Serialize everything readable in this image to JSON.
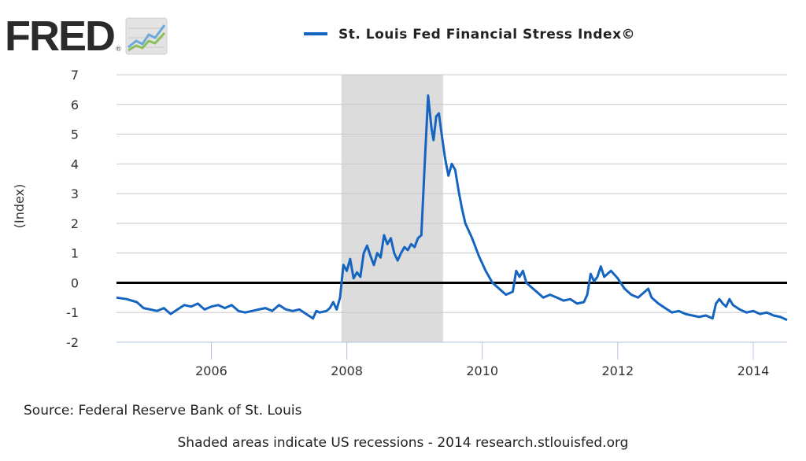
{
  "logo": {
    "text": "FRED",
    "mark": "®"
  },
  "chart_data": {
    "type": "line",
    "title": "St. Louis Fed Financial Stress Index©",
    "ylabel": "(Index)",
    "xlabel": "",
    "ylim": [
      -2,
      7
    ],
    "xlim": [
      2004.6,
      2014.5
    ],
    "yticks": [
      "7",
      "6",
      "5",
      "4",
      "3",
      "2",
      "1",
      "0",
      "-1",
      "-2"
    ],
    "xticks": [
      "2006",
      "2008",
      "2010",
      "2012",
      "2014"
    ],
    "recession": {
      "start": 2007.92,
      "end": 2009.42
    },
    "zero_line": 0,
    "series": [
      {
        "name": "St. Louis Fed Financial Stress Index©",
        "color": "#1565c0",
        "points": [
          [
            2004.6,
            -0.5
          ],
          [
            2004.75,
            -0.55
          ],
          [
            2004.9,
            -0.65
          ],
          [
            2005.0,
            -0.85
          ],
          [
            2005.1,
            -0.9
          ],
          [
            2005.2,
            -0.95
          ],
          [
            2005.3,
            -0.85
          ],
          [
            2005.4,
            -1.05
          ],
          [
            2005.5,
            -0.9
          ],
          [
            2005.6,
            -0.75
          ],
          [
            2005.7,
            -0.8
          ],
          [
            2005.8,
            -0.7
          ],
          [
            2005.9,
            -0.9
          ],
          [
            2006.0,
            -0.8
          ],
          [
            2006.1,
            -0.75
          ],
          [
            2006.2,
            -0.85
          ],
          [
            2006.3,
            -0.75
          ],
          [
            2006.4,
            -0.95
          ],
          [
            2006.5,
            -1.0
          ],
          [
            2006.6,
            -0.95
          ],
          [
            2006.7,
            -0.9
          ],
          [
            2006.8,
            -0.85
          ],
          [
            2006.9,
            -0.95
          ],
          [
            2007.0,
            -0.75
          ],
          [
            2007.1,
            -0.9
          ],
          [
            2007.2,
            -0.95
          ],
          [
            2007.3,
            -0.9
          ],
          [
            2007.4,
            -1.05
          ],
          [
            2007.5,
            -1.2
          ],
          [
            2007.55,
            -0.95
          ],
          [
            2007.6,
            -1.0
          ],
          [
            2007.7,
            -0.95
          ],
          [
            2007.75,
            -0.85
          ],
          [
            2007.8,
            -0.65
          ],
          [
            2007.85,
            -0.9
          ],
          [
            2007.9,
            -0.5
          ],
          [
            2007.95,
            0.6
          ],
          [
            2008.0,
            0.4
          ],
          [
            2008.05,
            0.8
          ],
          [
            2008.1,
            0.15
          ],
          [
            2008.15,
            0.35
          ],
          [
            2008.2,
            0.2
          ],
          [
            2008.25,
            1.0
          ],
          [
            2008.3,
            1.25
          ],
          [
            2008.35,
            0.9
          ],
          [
            2008.4,
            0.6
          ],
          [
            2008.45,
            1.0
          ],
          [
            2008.5,
            0.85
          ],
          [
            2008.55,
            1.6
          ],
          [
            2008.6,
            1.3
          ],
          [
            2008.65,
            1.5
          ],
          [
            2008.7,
            1.0
          ],
          [
            2008.75,
            0.75
          ],
          [
            2008.8,
            1.0
          ],
          [
            2008.85,
            1.2
          ],
          [
            2008.9,
            1.1
          ],
          [
            2008.95,
            1.3
          ],
          [
            2009.0,
            1.2
          ],
          [
            2009.05,
            1.5
          ],
          [
            2009.1,
            1.6
          ],
          [
            2009.15,
            4.0
          ],
          [
            2009.2,
            6.3
          ],
          [
            2009.25,
            5.2
          ],
          [
            2009.28,
            4.8
          ],
          [
            2009.32,
            5.6
          ],
          [
            2009.36,
            5.7
          ],
          [
            2009.4,
            5.0
          ],
          [
            2009.45,
            4.2
          ],
          [
            2009.5,
            3.6
          ],
          [
            2009.55,
            4.0
          ],
          [
            2009.6,
            3.8
          ],
          [
            2009.65,
            3.1
          ],
          [
            2009.7,
            2.5
          ],
          [
            2009.75,
            2.0
          ],
          [
            2009.85,
            1.5
          ],
          [
            2009.95,
            0.9
          ],
          [
            2010.05,
            0.4
          ],
          [
            2010.15,
            0.0
          ],
          [
            2010.25,
            -0.2
          ],
          [
            2010.35,
            -0.4
          ],
          [
            2010.45,
            -0.3
          ],
          [
            2010.5,
            0.4
          ],
          [
            2010.55,
            0.2
          ],
          [
            2010.6,
            0.4
          ],
          [
            2010.65,
            0.0
          ],
          [
            2010.7,
            -0.1
          ],
          [
            2010.8,
            -0.3
          ],
          [
            2010.9,
            -0.5
          ],
          [
            2011.0,
            -0.4
          ],
          [
            2011.1,
            -0.5
          ],
          [
            2011.2,
            -0.6
          ],
          [
            2011.3,
            -0.55
          ],
          [
            2011.4,
            -0.7
          ],
          [
            2011.5,
            -0.65
          ],
          [
            2011.55,
            -0.4
          ],
          [
            2011.6,
            0.3
          ],
          [
            2011.65,
            0.05
          ],
          [
            2011.7,
            0.2
          ],
          [
            2011.75,
            0.55
          ],
          [
            2011.8,
            0.2
          ],
          [
            2011.9,
            0.4
          ],
          [
            2012.0,
            0.15
          ],
          [
            2012.1,
            -0.2
          ],
          [
            2012.2,
            -0.4
          ],
          [
            2012.3,
            -0.5
          ],
          [
            2012.4,
            -0.3
          ],
          [
            2012.45,
            -0.2
          ],
          [
            2012.5,
            -0.5
          ],
          [
            2012.6,
            -0.7
          ],
          [
            2012.7,
            -0.85
          ],
          [
            2012.8,
            -1.0
          ],
          [
            2012.9,
            -0.95
          ],
          [
            2013.0,
            -1.05
          ],
          [
            2013.1,
            -1.1
          ],
          [
            2013.2,
            -1.15
          ],
          [
            2013.3,
            -1.1
          ],
          [
            2013.4,
            -1.2
          ],
          [
            2013.45,
            -0.7
          ],
          [
            2013.5,
            -0.55
          ],
          [
            2013.55,
            -0.7
          ],
          [
            2013.6,
            -0.8
          ],
          [
            2013.65,
            -0.55
          ],
          [
            2013.7,
            -0.75
          ],
          [
            2013.8,
            -0.9
          ],
          [
            2013.9,
            -1.0
          ],
          [
            2014.0,
            -0.95
          ],
          [
            2014.1,
            -1.05
          ],
          [
            2014.2,
            -1.0
          ],
          [
            2014.3,
            -1.1
          ],
          [
            2014.4,
            -1.15
          ],
          [
            2014.5,
            -1.25
          ]
        ]
      }
    ]
  },
  "source": "Source: Federal Reserve Bank of St. Louis",
  "footnote": "Shaded areas indicate US recessions - 2014 research.stlouisfed.org"
}
